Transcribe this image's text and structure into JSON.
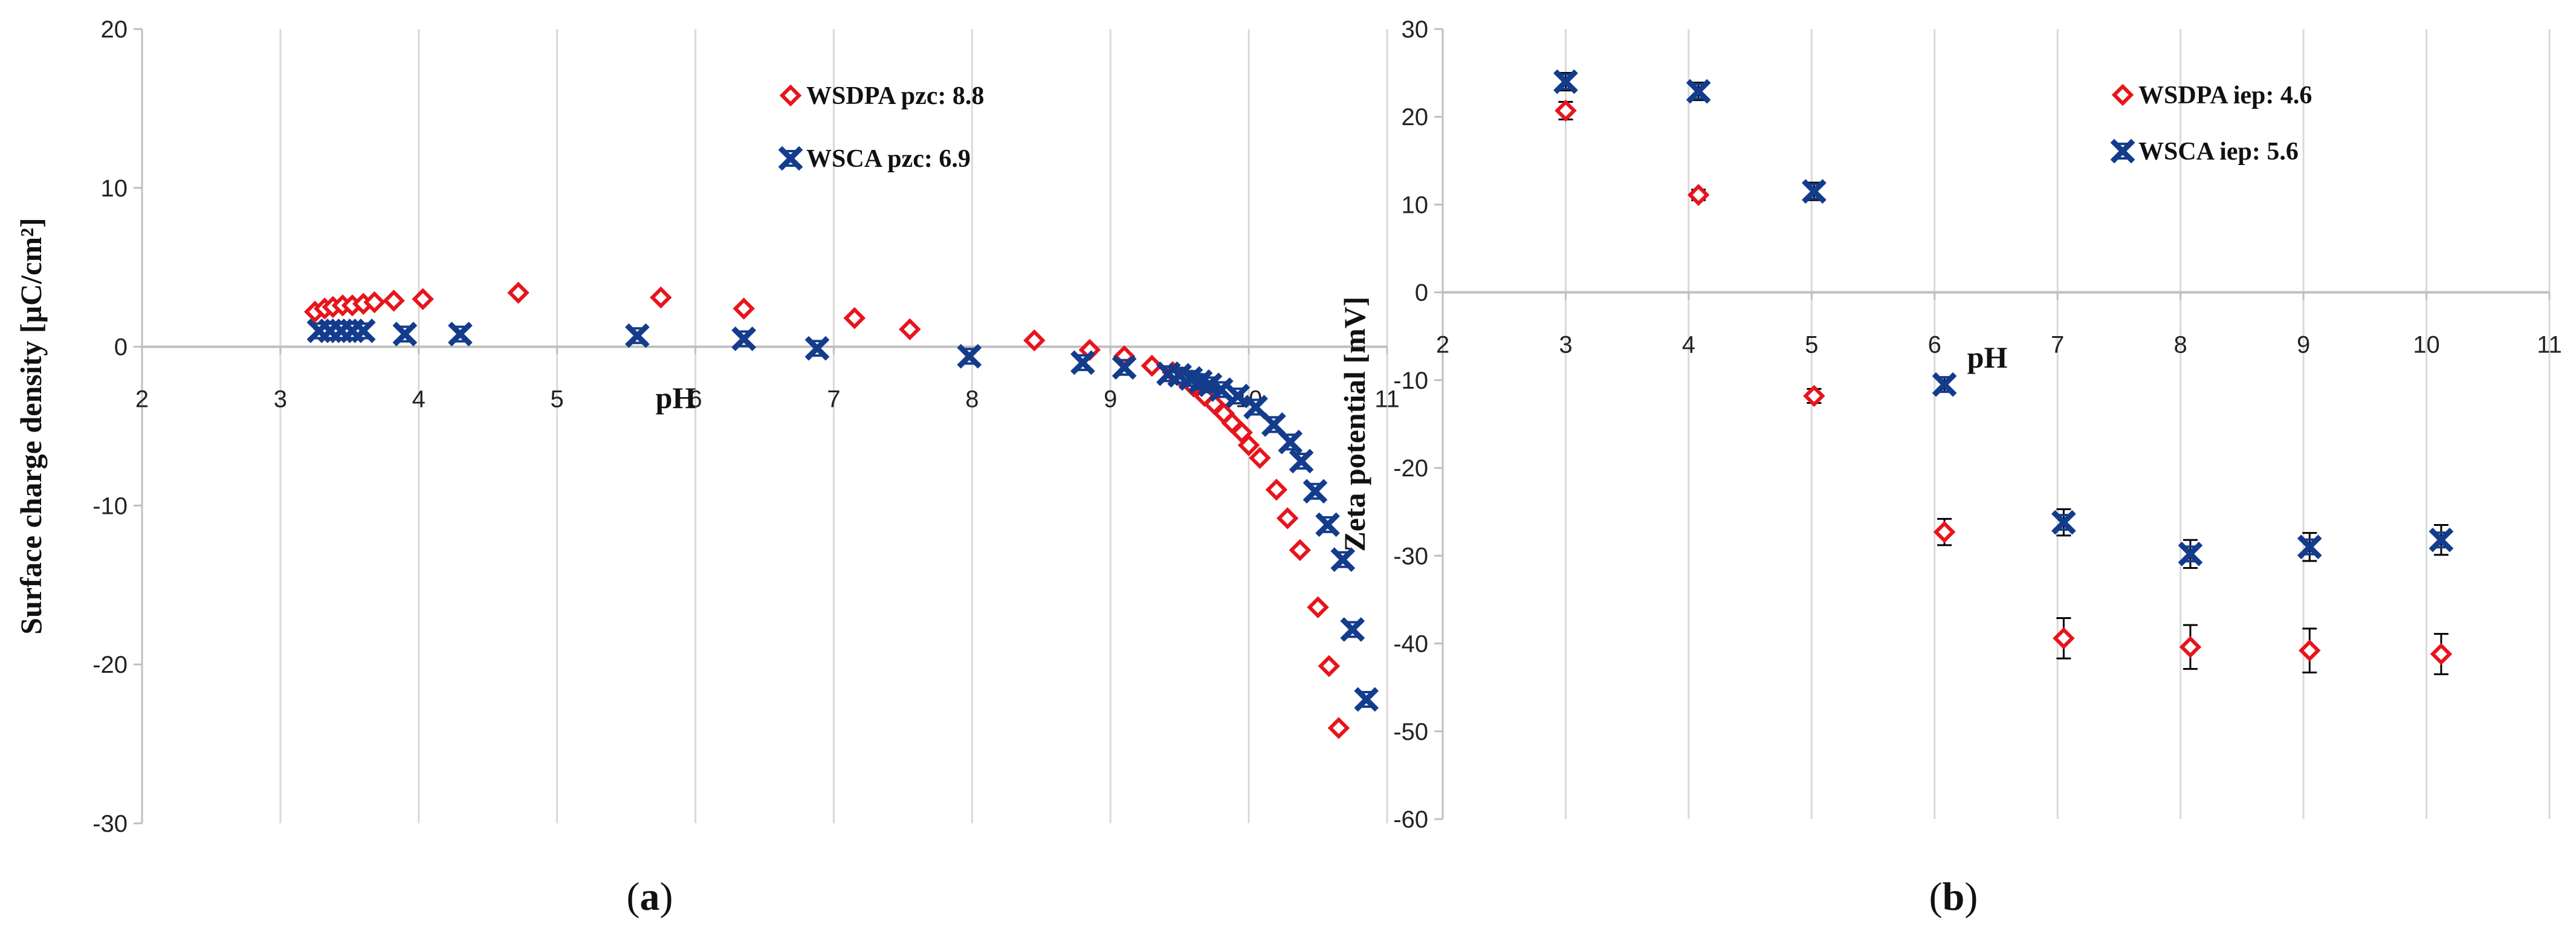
{
  "chart_data": [
    {
      "id": "a",
      "type": "scatter",
      "caption_letter": "a",
      "title": "",
      "xlabel": "pH",
      "ylabel": "Surface charge density [µC/cm²]",
      "xlim": [
        2,
        11
      ],
      "ylim": [
        -30,
        20
      ],
      "x_ticks": [
        "2",
        "3",
        "4",
        "5",
        "6",
        "7",
        "8",
        "9",
        "10",
        "11"
      ],
      "y_ticks": [
        "20",
        "10",
        "0",
        "-10",
        "-20",
        "-30"
      ],
      "legend": {
        "placement": "top-right"
      },
      "series": [
        {
          "name": "WSDPA",
          "legend_label": "WSDPA pzc: 8.8",
          "color": "#e8141c",
          "marker": "diamond-open",
          "points": [
            [
              3.25,
              2.2
            ],
            [
              3.32,
              2.4
            ],
            [
              3.38,
              2.5
            ],
            [
              3.45,
              2.6
            ],
            [
              3.52,
              2.6
            ],
            [
              3.6,
              2.7
            ],
            [
              3.68,
              2.8
            ],
            [
              3.82,
              2.9
            ],
            [
              4.03,
              3.0
            ],
            [
              4.72,
              3.4
            ],
            [
              5.75,
              3.1
            ],
            [
              6.35,
              2.4
            ],
            [
              7.15,
              1.8
            ],
            [
              7.55,
              1.1
            ],
            [
              8.45,
              0.4
            ],
            [
              8.85,
              -0.2
            ],
            [
              9.1,
              -0.6
            ],
            [
              9.3,
              -1.2
            ],
            [
              9.45,
              -1.6
            ],
            [
              9.52,
              -2.0
            ],
            [
              9.6,
              -2.5
            ],
            [
              9.68,
              -3.1
            ],
            [
              9.75,
              -3.6
            ],
            [
              9.82,
              -4.2
            ],
            [
              9.88,
              -4.8
            ],
            [
              9.95,
              -5.4
            ],
            [
              10.0,
              -6.2
            ],
            [
              10.08,
              -7.0
            ],
            [
              10.2,
              -9.0
            ],
            [
              10.28,
              -10.8
            ],
            [
              10.37,
              -12.8
            ],
            [
              10.5,
              -16.4
            ],
            [
              10.58,
              -20.1
            ],
            [
              10.65,
              -24.0
            ]
          ]
        },
        {
          "name": "WSCA",
          "legend_label": "WSCA pzc: 6.9",
          "color": "#143c8c",
          "marker": "x-bold",
          "points": [
            [
              3.28,
              1.0
            ],
            [
              3.36,
              1.0
            ],
            [
              3.44,
              1.0
            ],
            [
              3.52,
              1.0
            ],
            [
              3.6,
              1.0
            ],
            [
              3.9,
              0.8
            ],
            [
              4.3,
              0.8
            ],
            [
              5.58,
              0.7
            ],
            [
              6.35,
              0.5
            ],
            [
              6.88,
              -0.1
            ],
            [
              7.98,
              -0.6
            ],
            [
              8.8,
              -1.0
            ],
            [
              9.1,
              -1.3
            ],
            [
              9.42,
              -1.7
            ],
            [
              9.5,
              -1.8
            ],
            [
              9.58,
              -2.0
            ],
            [
              9.65,
              -2.2
            ],
            [
              9.72,
              -2.4
            ],
            [
              9.8,
              -2.7
            ],
            [
              9.92,
              -3.1
            ],
            [
              10.05,
              -3.8
            ],
            [
              10.18,
              -4.9
            ],
            [
              10.3,
              -6.0
            ],
            [
              10.38,
              -7.2
            ],
            [
              10.48,
              -9.1
            ],
            [
              10.57,
              -11.2
            ],
            [
              10.68,
              -13.4
            ],
            [
              10.75,
              -17.8
            ],
            [
              10.85,
              -22.2
            ]
          ]
        }
      ]
    },
    {
      "id": "b",
      "type": "scatter",
      "caption_letter": "b",
      "title": "",
      "xlabel": "pH",
      "ylabel": "Zeta potential [mV]",
      "xlim": [
        2,
        11
      ],
      "ylim": [
        -60,
        30
      ],
      "x_ticks": [
        "2",
        "3",
        "4",
        "5",
        "6",
        "7",
        "8",
        "9",
        "10",
        "11"
      ],
      "y_ticks": [
        "30",
        "20",
        "10",
        "0",
        "-10",
        "-20",
        "-30",
        "-40",
        "-50",
        "-60"
      ],
      "legend": {
        "placement": "top-right"
      },
      "series": [
        {
          "name": "WSDPA",
          "legend_label": "WSDPA iep: 4.6",
          "color": "#e8141c",
          "marker": "diamond-open",
          "points": [
            [
              3.0,
              20.7,
              1.0
            ],
            [
              4.08,
              11.1,
              0.6
            ],
            [
              5.02,
              -11.8,
              0.8
            ],
            [
              6.08,
              -27.3,
              1.5
            ],
            [
              7.05,
              -39.4,
              2.3
            ],
            [
              8.08,
              -40.4,
              2.5
            ],
            [
              9.05,
              -40.8,
              2.5
            ],
            [
              10.12,
              -41.2,
              2.3
            ]
          ]
        },
        {
          "name": "WSCA",
          "legend_label": "WSCA iep: 5.6",
          "color": "#143c8c",
          "marker": "x-bold",
          "points": [
            [
              3.0,
              24.0,
              1.0
            ],
            [
              4.08,
              22.9,
              1.0
            ],
            [
              5.02,
              11.5,
              1.0
            ],
            [
              6.08,
              -10.5,
              0.8
            ],
            [
              7.05,
              -26.2,
              1.5
            ],
            [
              8.08,
              -29.8,
              1.6
            ],
            [
              9.05,
              -29.0,
              1.6
            ],
            [
              10.12,
              -28.2,
              1.7
            ]
          ]
        }
      ]
    }
  ]
}
